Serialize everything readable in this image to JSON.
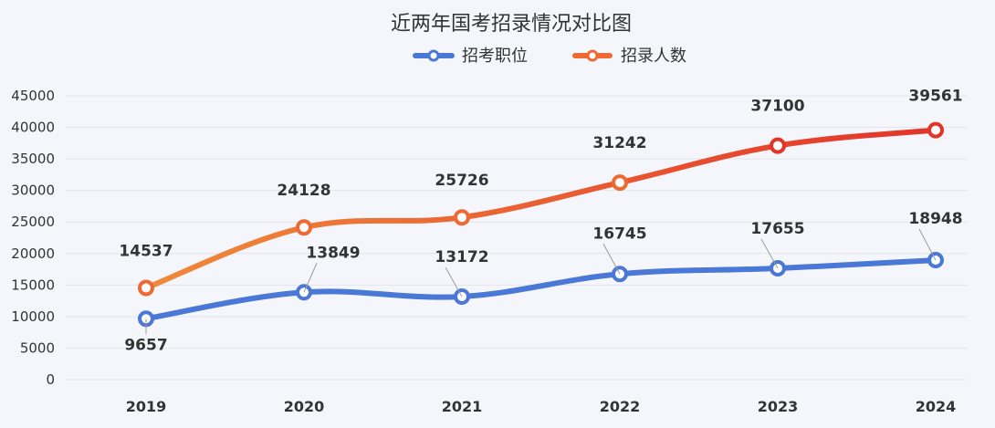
{
  "chart_data": {
    "type": "line",
    "title": "近两年国考招录情况对比图",
    "categories": [
      "2019",
      "2020",
      "2021",
      "2022",
      "2023",
      "2024"
    ],
    "series": [
      {
        "name": "招考职位",
        "values": [
          9657,
          13849,
          13172,
          16745,
          17655,
          18948
        ],
        "color_start": "#4a78d6",
        "color_end": "#4a78d6"
      },
      {
        "name": "招录人数",
        "values": [
          14537,
          24128,
          25726,
          31242,
          37100,
          39561
        ],
        "color_start": "#f08a3a",
        "color_end": "#e3342a"
      }
    ],
    "yticks": [
      "0",
      "5000",
      "10000",
      "15000",
      "20000",
      "25000",
      "30000",
      "35000",
      "40000",
      "45000"
    ],
    "ylim": [
      0,
      45000
    ],
    "grid": true,
    "legend": "top-center",
    "smooth": true
  }
}
